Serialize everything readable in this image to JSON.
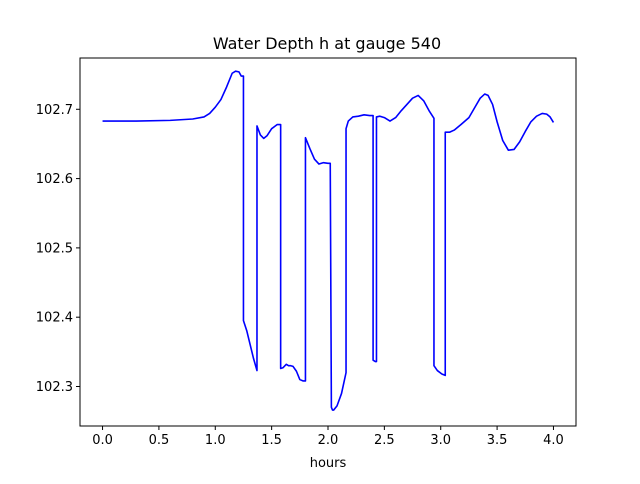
{
  "chart_data": {
    "type": "line",
    "title": "Water Depth h at gauge 540",
    "xlabel": "hours",
    "ylabel": "",
    "xlim": [
      -0.2,
      4.2
    ],
    "ylim": [
      102.243,
      102.774
    ],
    "x_ticks": [
      0.0,
      0.5,
      1.0,
      1.5,
      2.0,
      2.5,
      3.0,
      3.5,
      4.0
    ],
    "x_tick_labels": [
      "0.0",
      "0.5",
      "1.0",
      "1.5",
      "2.0",
      "2.5",
      "3.0",
      "3.5",
      "4.0"
    ],
    "y_ticks": [
      102.3,
      102.4,
      102.5,
      102.6,
      102.7
    ],
    "y_tick_labels": [
      "102.3",
      "102.4",
      "102.5",
      "102.6",
      "102.7"
    ],
    "grid": false,
    "legend": "none",
    "colors": {
      "line": "#0000ff",
      "axes": "#000000",
      "background": "#ffffff"
    },
    "series": [
      {
        "x": [
          0.0,
          0.3,
          0.6,
          0.8,
          0.9,
          0.95,
          1.0,
          1.05,
          1.1,
          1.15,
          1.18,
          1.21,
          1.23,
          1.25,
          1.25,
          1.28,
          1.31,
          1.34,
          1.37,
          1.37,
          1.4,
          1.43,
          1.46,
          1.5,
          1.55,
          1.58,
          1.58,
          1.6,
          1.63,
          1.65,
          1.67,
          1.69,
          1.72,
          1.75,
          1.78,
          1.8,
          1.8,
          1.84,
          1.88,
          1.92,
          1.96,
          2.0,
          2.02,
          2.03,
          2.04,
          2.05,
          2.08,
          2.12,
          2.16,
          2.16,
          2.18,
          2.22,
          2.27,
          2.32,
          2.37,
          2.39,
          2.4,
          2.4,
          2.42,
          2.43,
          2.43,
          2.46,
          2.5,
          2.55,
          2.6,
          2.65,
          2.7,
          2.75,
          2.8,
          2.85,
          2.9,
          2.94,
          2.94,
          2.97,
          3.01,
          3.04,
          3.04,
          3.08,
          3.12,
          3.18,
          3.25,
          3.3,
          3.35,
          3.39,
          3.42,
          3.46,
          3.5,
          3.55,
          3.6,
          3.65,
          3.7,
          3.75,
          3.8,
          3.85,
          3.9,
          3.94,
          3.97,
          4.0
        ],
        "y": [
          102.683,
          102.683,
          102.684,
          102.686,
          102.689,
          102.694,
          102.703,
          102.714,
          102.732,
          102.752,
          102.755,
          102.754,
          102.748,
          102.748,
          102.395,
          102.38,
          102.36,
          102.34,
          102.323,
          102.676,
          102.663,
          102.658,
          102.662,
          102.672,
          102.678,
          102.678,
          102.326,
          102.327,
          102.332,
          102.33,
          102.33,
          102.329,
          102.322,
          102.31,
          102.308,
          102.308,
          102.659,
          102.643,
          102.628,
          102.621,
          102.623,
          102.622,
          102.622,
          102.27,
          102.266,
          102.266,
          102.272,
          102.29,
          102.32,
          102.672,
          102.683,
          102.689,
          102.69,
          102.692,
          102.691,
          102.691,
          102.691,
          102.338,
          102.336,
          102.336,
          102.689,
          102.69,
          102.688,
          102.683,
          102.688,
          102.698,
          102.707,
          102.716,
          102.72,
          102.712,
          102.697,
          102.687,
          102.33,
          102.323,
          102.318,
          102.316,
          102.667,
          102.667,
          102.67,
          102.678,
          102.688,
          102.702,
          102.716,
          102.722,
          102.72,
          102.707,
          102.682,
          102.655,
          102.641,
          102.642,
          102.653,
          102.668,
          102.682,
          102.69,
          102.694,
          102.693,
          102.689,
          102.681
        ]
      }
    ]
  }
}
